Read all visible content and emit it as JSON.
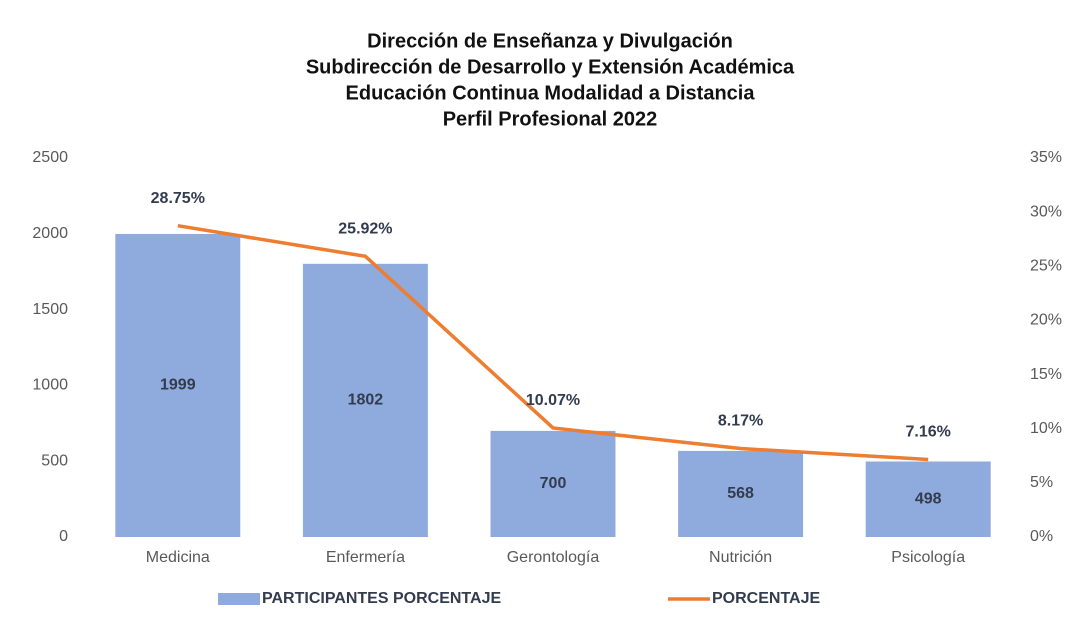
{
  "chart_data": {
    "type": "bar",
    "title": [
      "Dirección de Enseñanza y Divulgación",
      "Subdirección de Desarrollo y Extensión Académica",
      "Educación Continua Modalidad a Distancia",
      "Perfil Profesional 2022"
    ],
    "categories": [
      "Medicina",
      "Enfermería",
      "Gerontología",
      "Nutrición",
      "Psicología"
    ],
    "series": [
      {
        "name": "PARTICIPANTES PORCENTAJE",
        "type": "bar",
        "color": "#8faadc",
        "values": [
          1999,
          1802,
          700,
          568,
          498
        ]
      },
      {
        "name": "PORCENTAJE",
        "type": "line",
        "axis": "y2",
        "color": "#ed7d31",
        "values": [
          28.75,
          25.92,
          10.07,
          8.17,
          7.16
        ],
        "value_labels": [
          "28.75%",
          "25.92%",
          "10.07%",
          "8.17%",
          "7.16%"
        ]
      }
    ],
    "ylim": [
      0,
      2500
    ],
    "yticks": [
      0,
      500,
      1000,
      1500,
      2000,
      2500
    ],
    "y2lim": [
      0,
      35
    ],
    "y2ticks": [
      {
        "value": 0,
        "label": "0%"
      },
      {
        "value": 5,
        "label": "5%"
      },
      {
        "value": 10,
        "label": "10%"
      },
      {
        "value": 15,
        "label": "15%"
      },
      {
        "value": 20,
        "label": "20%"
      },
      {
        "value": 25,
        "label": "25%"
      },
      {
        "value": 30,
        "label": "30%"
      },
      {
        "value": 35,
        "label": "35%"
      }
    ],
    "grid": false,
    "legend": "bottom"
  }
}
